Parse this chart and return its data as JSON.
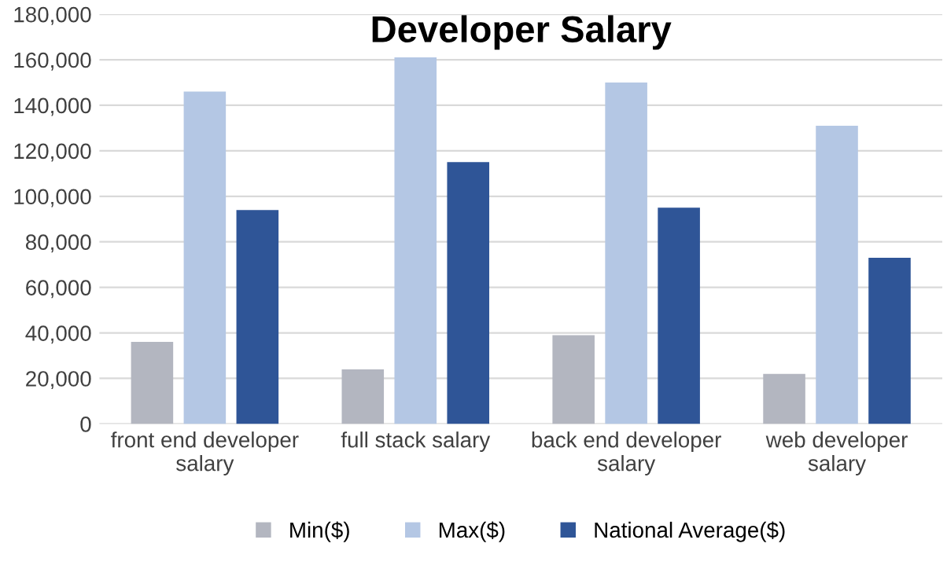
{
  "chart_data": {
    "type": "bar",
    "title": "Developer Salary",
    "categories": [
      "front end developer salary",
      "full stack salary",
      "back end developer salary",
      "web developer salary"
    ],
    "series": [
      {
        "name": "Min($)",
        "color": "#b3b6c0",
        "values": [
          36000,
          24000,
          39000,
          22000
        ]
      },
      {
        "name": "Max($)",
        "color": "#b4c7e4",
        "values": [
          146000,
          161000,
          150000,
          131000
        ]
      },
      {
        "name": "National Average($)",
        "color": "#2f5597",
        "values": [
          94000,
          115000,
          95000,
          73000
        ]
      }
    ],
    "ylim": [
      0,
      180000
    ],
    "yticks": [
      {
        "value": 0,
        "label": "0"
      },
      {
        "value": 20000,
        "label": "20,000"
      },
      {
        "value": 40000,
        "label": "40,000"
      },
      {
        "value": 60000,
        "label": "60,000"
      },
      {
        "value": 80000,
        "label": "80,000"
      },
      {
        "value": 100000,
        "label": "100,000"
      },
      {
        "value": 120000,
        "label": "120,000"
      },
      {
        "value": 140000,
        "label": "140,000"
      },
      {
        "value": 160000,
        "label": "160,000"
      },
      {
        "value": 180000,
        "label": "180,000"
      }
    ],
    "grid": "y",
    "legend": "bottom"
  }
}
